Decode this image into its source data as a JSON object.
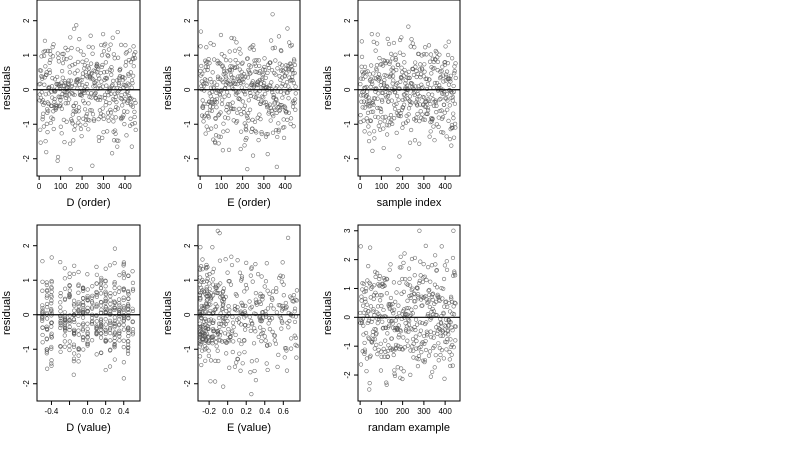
{
  "chart_data": [
    {
      "type": "scatter",
      "xlabel": "D (order)",
      "ylabel": "residuals",
      "xlim": [
        -10,
        470
      ],
      "ylim": [
        -2.5,
        2.6
      ],
      "xticks": [
        0,
        100,
        200,
        300,
        400
      ],
      "yticks": [
        -2,
        -1,
        0,
        1,
        2
      ],
      "n_points": 450,
      "reference_line_y": 0,
      "x": "point index 1..450",
      "y_range": [
        -2.3,
        2.45
      ],
      "grid": false,
      "legend": "none"
    },
    {
      "type": "scatter",
      "xlabel": "E (order)",
      "ylabel": "residuals",
      "xlim": [
        -10,
        470
      ],
      "ylim": [
        -2.5,
        2.6
      ],
      "xticks": [
        0,
        100,
        200,
        300,
        400
      ],
      "yticks": [
        -2,
        -1,
        0,
        1,
        2
      ],
      "n_points": 450,
      "reference_line_y": 0,
      "x": "point index 1..450",
      "y_range": [
        -2.3,
        2.45
      ],
      "grid": false,
      "legend": "none"
    },
    {
      "type": "scatter",
      "xlabel": "sample index",
      "ylabel": "residuals",
      "xlim": [
        -10,
        470
      ],
      "ylim": [
        -2.5,
        2.6
      ],
      "xticks": [
        0,
        100,
        200,
        300,
        400
      ],
      "yticks": [
        -2,
        -1,
        0,
        1,
        2
      ],
      "n_points": 450,
      "reference_line_y": 0,
      "x": "point index 1..450",
      "y_range": [
        -2.3,
        2.45
      ],
      "grid": false,
      "legend": "none"
    },
    {
      "type": "scatter",
      "xlabel": "D (value)",
      "ylabel": "residuals",
      "xlim": [
        -0.56,
        0.58
      ],
      "ylim": [
        -2.5,
        2.6
      ],
      "xticks": [
        -0.4,
        -0.2,
        0.0,
        0.2,
        0.4
      ],
      "xtick_labels": [
        "-0.4",
        "",
        "0.0",
        "0.2",
        "0.4"
      ],
      "yticks": [
        -2,
        -1,
        0,
        1,
        2
      ],
      "n_points": 450,
      "reference_line_y": 0,
      "x_levels": [
        -0.5,
        -0.45,
        -0.4,
        -0.3,
        -0.25,
        -0.2,
        -0.15,
        -0.1,
        -0.05,
        0.0,
        0.05,
        0.1,
        0.15,
        0.2,
        0.25,
        0.3,
        0.35,
        0.4,
        0.45,
        0.5
      ],
      "grid": false,
      "legend": "none"
    },
    {
      "type": "scatter",
      "xlabel": "E (value)",
      "ylabel": "residuals",
      "xlim": [
        -0.32,
        0.78
      ],
      "ylim": [
        -2.5,
        2.6
      ],
      "xticks": [
        -0.2,
        0.0,
        0.2,
        0.4,
        0.6
      ],
      "xtick_labels": [
        "-0.2",
        "0.0",
        "0.2",
        "0.4",
        "0.6"
      ],
      "yticks": [
        -2,
        -1,
        0,
        1,
        2
      ],
      "n_points": 450,
      "reference_line_y": 0,
      "x_range": [
        -0.3,
        0.75
      ],
      "grid": false,
      "legend": "none"
    },
    {
      "type": "scatter",
      "xlabel": "randam example",
      "ylabel": "residuals",
      "xlim": [
        -10,
        470
      ],
      "ylim": [
        -2.9,
        3.2
      ],
      "xticks": [
        0,
        100,
        200,
        300,
        400
      ],
      "yticks": [
        -2,
        -1,
        0,
        1,
        2,
        3
      ],
      "n_points": 450,
      "reference_line_y": 0,
      "x": "point index 1..450",
      "y_range": [
        -2.7,
        3.0
      ],
      "grid": false,
      "legend": "none"
    }
  ],
  "colors": {
    "point_stroke": "#555555",
    "axis": "#000000",
    "background": "#ffffff"
  }
}
